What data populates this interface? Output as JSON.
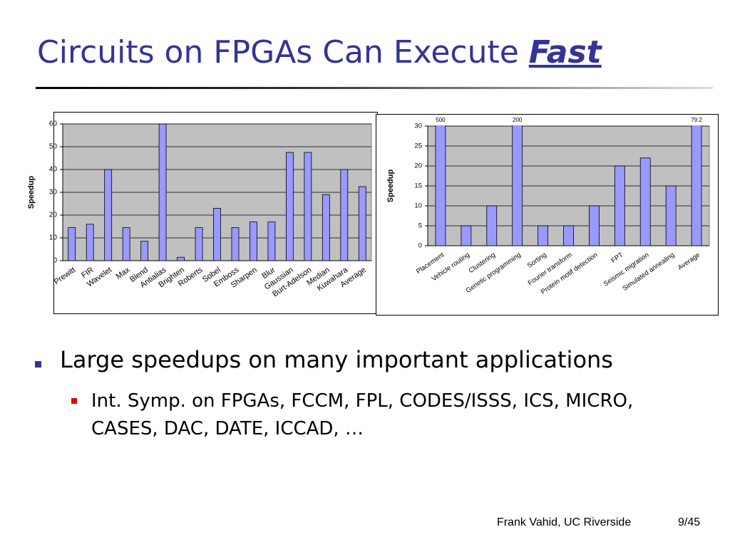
{
  "title": "Circuits on FPGAs Can Execute",
  "title_emphasis": "Fast",
  "chart_data": [
    {
      "type": "bar",
      "y_label": "Speedup",
      "color": "#9999ff",
      "plot_background": "#c0c0c0",
      "categories": [
        "Prewitt",
        "FIR",
        "Wavelet",
        "Max",
        "Blend",
        "Antialias",
        "Brighten",
        "Roberts",
        "Sobel",
        "Emboss",
        "Sharpen",
        "Blur",
        "Gaussian",
        "Burt-Adelson",
        "Median",
        "Kuwahara",
        "Average"
      ],
      "values": [
        14.5,
        16,
        40,
        14.5,
        8.5,
        60,
        1.5,
        14.5,
        23,
        14.5,
        17,
        17,
        47.5,
        47.5,
        29,
        40,
        32.5
      ],
      "ylim": [
        0,
        60
      ],
      "yticks": [
        0,
        10,
        20,
        30,
        40,
        50,
        60
      ],
      "grid": true
    },
    {
      "type": "bar",
      "y_label": "Speedup",
      "color": "#9999ff",
      "plot_background": "#c0c0c0",
      "categories": [
        "Placement",
        "Vehicle routing",
        "Clustering",
        "Genetic programming",
        "Sorting",
        "Fourier transform",
        "Protein motif detection",
        "FPT",
        "Seismic migration",
        "Simulated annealing",
        "Average"
      ],
      "values": [
        500,
        5,
        10,
        200,
        5,
        5,
        10,
        20,
        22,
        15,
        79.2
      ],
      "value_labels": [
        "500",
        null,
        null,
        "200",
        null,
        null,
        null,
        null,
        null,
        null,
        "79.2"
      ],
      "ylim": [
        0,
        30
      ],
      "yticks": [
        0,
        5,
        10,
        15,
        20,
        25,
        30
      ],
      "grid": true
    }
  ],
  "bullets": [
    {
      "text": "Large speedups on many important applications",
      "sub": [
        "Int. Symp. on FPGAs, FCCM, FPL, CODES/ISSS, ICS, MICRO, CASES, DAC, DATE, ICCAD, …"
      ]
    }
  ],
  "footer": {
    "author": "Frank Vahid, UC Riverside",
    "page": "9/45"
  }
}
